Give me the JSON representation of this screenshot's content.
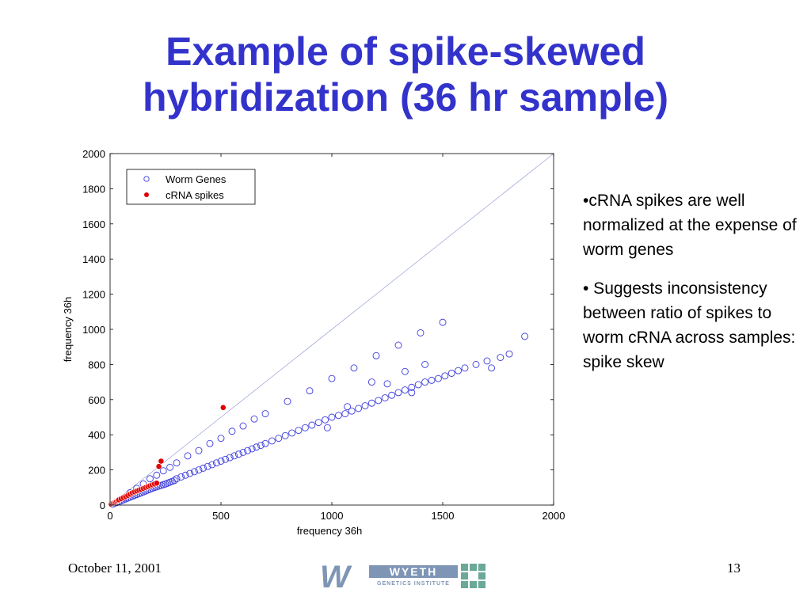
{
  "slide": {
    "title_line1": "Example of spike-skewed",
    "title_line2": "hybridization (36 hr sample)",
    "bullets": [
      "•cRNA spikes are well normalized at the expense of worm genes",
      "• Suggests inconsistency between ratio of spikes to worm cRNA across samples: spike skew"
    ],
    "footer_date": "October 11, 2001",
    "page_number": "13",
    "logo": {
      "name": "WYETH",
      "subtitle": "GENETICS INSTITUTE",
      "icon": "wyeth-logo-icon"
    }
  },
  "colors": {
    "title": "#3333cc",
    "worm_genes": "#3b3bdd",
    "crna_spikes": "#e00000",
    "diagonal": "#9aa0d8"
  },
  "chart_data": {
    "type": "scatter",
    "title": "",
    "xlabel": "frequency 36h",
    "ylabel": "frequency 36h",
    "xlim": [
      0,
      2000
    ],
    "ylim": [
      0,
      2000
    ],
    "xticks": [
      0,
      500,
      1000,
      1500,
      2000
    ],
    "yticks": [
      0,
      200,
      400,
      600,
      800,
      1000,
      1200,
      1400,
      1600,
      1800,
      2000
    ],
    "grid": false,
    "legend_position": "top-left",
    "reference_line": {
      "from": [
        0,
        0
      ],
      "to": [
        2000,
        2000
      ]
    },
    "series": [
      {
        "name": "Worm Genes",
        "marker": "open-circle",
        "x": [
          10,
          20,
          30,
          40,
          50,
          60,
          70,
          80,
          90,
          100,
          110,
          120,
          130,
          140,
          150,
          160,
          170,
          180,
          190,
          200,
          210,
          220,
          230,
          240,
          250,
          260,
          270,
          280,
          290,
          300,
          320,
          340,
          360,
          380,
          400,
          420,
          440,
          460,
          480,
          500,
          520,
          540,
          560,
          580,
          600,
          620,
          640,
          660,
          680,
          700,
          730,
          760,
          790,
          820,
          850,
          880,
          910,
          940,
          970,
          1000,
          1030,
          1060,
          1090,
          1120,
          1150,
          1180,
          1210,
          1240,
          1270,
          1300,
          1330,
          1360,
          1390,
          1420,
          1450,
          1480,
          1510,
          1540,
          1570,
          1600,
          1650,
          1700,
          1760,
          1800,
          1870,
          60,
          90,
          120,
          150,
          180,
          210,
          240,
          270,
          300,
          350,
          400,
          450,
          500,
          550,
          600,
          650,
          700,
          800,
          900,
          1000,
          1100,
          1200,
          1300,
          1400,
          1500,
          1180,
          1250,
          1330,
          1420,
          1070,
          980,
          1360,
          1720
        ],
        "y": [
          5,
          10,
          15,
          20,
          25,
          30,
          35,
          40,
          45,
          50,
          55,
          60,
          65,
          70,
          75,
          80,
          85,
          90,
          95,
          100,
          104,
          108,
          112,
          116,
          120,
          125,
          130,
          135,
          140,
          150,
          160,
          170,
          180,
          190,
          200,
          210,
          220,
          230,
          240,
          250,
          260,
          270,
          280,
          290,
          300,
          310,
          320,
          330,
          340,
          350,
          365,
          380,
          395,
          410,
          425,
          440,
          455,
          470,
          485,
          500,
          510,
          520,
          535,
          550,
          565,
          580,
          595,
          610,
          625,
          640,
          655,
          670,
          685,
          700,
          710,
          720,
          735,
          750,
          765,
          780,
          800,
          820,
          840,
          860,
          960,
          40,
          70,
          95,
          120,
          150,
          170,
          195,
          215,
          240,
          280,
          310,
          350,
          380,
          420,
          450,
          490,
          520,
          590,
          650,
          720,
          780,
          850,
          910,
          980,
          1040,
          700,
          690,
          760,
          800,
          560,
          440,
          640,
          780
        ]
      },
      {
        "name": "cRNA spikes",
        "marker": "filled-circle",
        "x": [
          5,
          10,
          15,
          20,
          25,
          30,
          35,
          40,
          50,
          60,
          70,
          80,
          90,
          100,
          110,
          120,
          130,
          140,
          150,
          160,
          170,
          180,
          190,
          200,
          210,
          220,
          230,
          510
        ],
        "y": [
          5,
          10,
          12,
          15,
          18,
          22,
          26,
          30,
          36,
          42,
          48,
          55,
          62,
          70,
          75,
          80,
          85,
          90,
          95,
          100,
          105,
          110,
          115,
          120,
          125,
          220,
          250,
          555
        ]
      }
    ]
  }
}
